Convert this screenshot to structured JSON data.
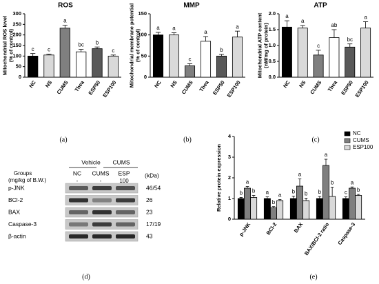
{
  "chart_data": [
    {
      "type": "bar",
      "title": "ROS",
      "ylabel": [
        "Mitochondrial ROS level",
        "(% of control)"
      ],
      "categories": [
        "NC",
        "NS",
        "CUMS",
        "Thea",
        "ESP50",
        "ESP100"
      ],
      "values": [
        100,
        105,
        232,
        120,
        135,
        100
      ],
      "errors": [
        12,
        4,
        14,
        12,
        8,
        5
      ],
      "letters": [
        "c",
        "c",
        "a",
        "bc",
        "b",
        "c"
      ],
      "colors": [
        "#000000",
        "#d9d9d9",
        "#7f7f7f",
        "#ffffff",
        "#595959",
        "#d9d9d9"
      ],
      "ylim": [
        0,
        300
      ],
      "yticks": [
        0,
        50,
        100,
        150,
        200,
        250,
        300
      ]
    },
    {
      "type": "bar",
      "title": "MMP",
      "ylabel": [
        "Mitochondrial membrane potential",
        "(% of control)"
      ],
      "categories": [
        "NC",
        "NS",
        "CUMS",
        "Thea",
        "ESP50",
        "ESP100"
      ],
      "values": [
        100,
        100,
        27,
        85,
        50,
        95
      ],
      "errors": [
        6,
        5,
        5,
        11,
        4,
        14
      ],
      "letters": [
        "a",
        "a",
        "c",
        "a",
        "b",
        "a"
      ],
      "colors": [
        "#000000",
        "#d9d9d9",
        "#7f7f7f",
        "#ffffff",
        "#595959",
        "#d9d9d9"
      ],
      "ylim": [
        0,
        150
      ],
      "yticks": [
        0,
        50,
        100,
        150
      ]
    },
    {
      "type": "bar",
      "title": "ATP",
      "ylabel": [
        "Mitochondrial ATP content",
        "(nM/mg of protein)"
      ],
      "categories": [
        "NC",
        "NS",
        "CUMS",
        "Thea",
        "ESP50",
        "ESP100"
      ],
      "values": [
        1.58,
        1.55,
        0.7,
        1.25,
        0.95,
        1.55
      ],
      "errors": [
        0.2,
        0.08,
        0.15,
        0.25,
        0.1,
        0.2
      ],
      "letters": [
        "a",
        "a",
        "c",
        "ab",
        "bc",
        "a"
      ],
      "colors": [
        "#000000",
        "#d9d9d9",
        "#7f7f7f",
        "#ffffff",
        "#595959",
        "#d9d9d9"
      ],
      "ylim": [
        0,
        2
      ],
      "yticks": [
        {
          "value": 0,
          "label": "0.0"
        },
        {
          "value": 0.5,
          "label": "0.5"
        },
        {
          "value": 1,
          "label": "1.0"
        },
        {
          "value": 1.5,
          "label": "1.5"
        },
        {
          "value": 2,
          "label": "2.0"
        }
      ]
    },
    {
      "type": "grouped_bar",
      "ylabel": [
        "Relative protein expression"
      ],
      "categories": [
        "p-JNK",
        "BCl-2",
        "BAX",
        "BAX/BCl-2 ratio",
        "Caspase-3"
      ],
      "series": [
        {
          "name": "NC",
          "color": "#000000",
          "values": [
            1.0,
            1.0,
            1.0,
            1.0,
            1.0
          ],
          "errors": [
            0.05,
            0.08,
            0.12,
            0.1,
            0.08
          ],
          "letters": [
            "b",
            "a",
            "b",
            "b",
            "c"
          ]
        },
        {
          "name": "CUMS",
          "color": "#7f7f7f",
          "values": [
            1.5,
            0.55,
            1.6,
            2.6,
            1.5
          ],
          "errors": [
            0.08,
            0.06,
            0.35,
            0.3,
            0.06
          ],
          "letters": [
            "a",
            "b",
            "a",
            "a",
            "a"
          ]
        },
        {
          "name": "ESP100",
          "color": "#d9d9d9",
          "values": [
            1.05,
            0.9,
            0.9,
            1.1,
            1.15
          ],
          "errors": [
            0.1,
            0.05,
            0.12,
            0.45,
            0.05
          ],
          "letters": [
            "b",
            "a",
            "b",
            "b",
            "b"
          ]
        }
      ],
      "ylim": [
        0,
        4
      ],
      "yticks": [
        0,
        1,
        2,
        3,
        4
      ],
      "legend": "top-right"
    }
  ],
  "blot": {
    "header": {
      "vehicle": "Vehicle",
      "cums": "CUMS",
      "groups": [
        "Groups",
        "(mg/kg of B.W.)"
      ],
      "columns": [
        "NC",
        "CUMS",
        "ESP"
      ],
      "doses": [
        "-",
        "-",
        "100"
      ],
      "unit": "(kDa)"
    },
    "rows": [
      {
        "label": "p-JNK",
        "kda": "46/54"
      },
      {
        "label": "BCl-2",
        "kda": "26"
      },
      {
        "label": "BAX",
        "kda": "23"
      },
      {
        "label": "Caspase-3",
        "kda": "17/19"
      },
      {
        "label": "β-actin",
        "kda": "43"
      }
    ]
  },
  "panel_labels": [
    "(a)",
    "(b)",
    "(c)",
    "(d)",
    "(e)"
  ]
}
